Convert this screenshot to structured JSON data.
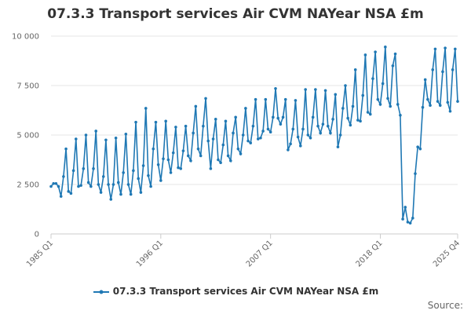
{
  "chart_data": {
    "type": "line",
    "title": "07.3.3 Transport services Air CVM NAYear NSA £m",
    "xlabel": "",
    "ylabel": "",
    "ylim": [
      0,
      10000
    ],
    "yticks": [
      0,
      2500,
      5000,
      7500,
      10000
    ],
    "ytick_labels": [
      "0",
      "2 500",
      "5 000",
      "7 500",
      "10 000"
    ],
    "x_start": "1985 Q1",
    "x_end": "2025 Q4",
    "xtick_labels": [
      "1985 Q1",
      "1996 Q1",
      "2007 Q1",
      "2018 Q1",
      "2025 Q4"
    ],
    "xtick_index": [
      0,
      44,
      88,
      132,
      163
    ],
    "grid": true,
    "legend": "bottom",
    "color": "#1f78b4",
    "series": [
      {
        "name": "07.3.3 Transport services Air CVM NAYear NSA £m",
        "values": [
          2400,
          2550,
          2550,
          2400,
          1900,
          2900,
          4300,
          2150,
          2050,
          3200,
          4800,
          2400,
          2450,
          3300,
          5000,
          2600,
          2400,
          3300,
          5200,
          2500,
          2100,
          2900,
          4750,
          2500,
          1750,
          2500,
          4850,
          2600,
          2000,
          3100,
          5050,
          2500,
          2000,
          3200,
          5650,
          2800,
          2100,
          3450,
          6350,
          2950,
          2400,
          4300,
          5650,
          3500,
          2700,
          3800,
          5700,
          3750,
          3100,
          4100,
          5400,
          3350,
          3300,
          4200,
          5450,
          3950,
          3700,
          5100,
          6450,
          4300,
          3950,
          5450,
          6850,
          4700,
          3300,
          4800,
          5800,
          3750,
          3600,
          4500,
          5700,
          3950,
          3700,
          5100,
          5900,
          4300,
          4050,
          5000,
          6350,
          4700,
          4600,
          5450,
          6800,
          4800,
          4850,
          5200,
          6800,
          5300,
          5150,
          5900,
          7350,
          5850,
          5550,
          5900,
          6800,
          4250,
          4550,
          5300,
          6750,
          4900,
          4450,
          5300,
          7300,
          5000,
          4850,
          5900,
          7300,
          5450,
          5100,
          5550,
          7250,
          5450,
          5100,
          5800,
          7050,
          4400,
          5000,
          6350,
          7500,
          5850,
          5500,
          6450,
          8300,
          5750,
          5700,
          7000,
          9050,
          6150,
          6050,
          7850,
          9200,
          6800,
          6550,
          7600,
          9450,
          6850,
          6450,
          8500,
          9100,
          6550,
          6000,
          750,
          1350,
          600,
          550,
          800,
          3050,
          4400,
          4300,
          6400,
          7800,
          6800,
          6500,
          8300,
          9350,
          6700,
          6500,
          8200,
          9400,
          6650,
          6200,
          8300,
          9350,
          6700
        ]
      }
    ]
  },
  "source_label": "Source:"
}
